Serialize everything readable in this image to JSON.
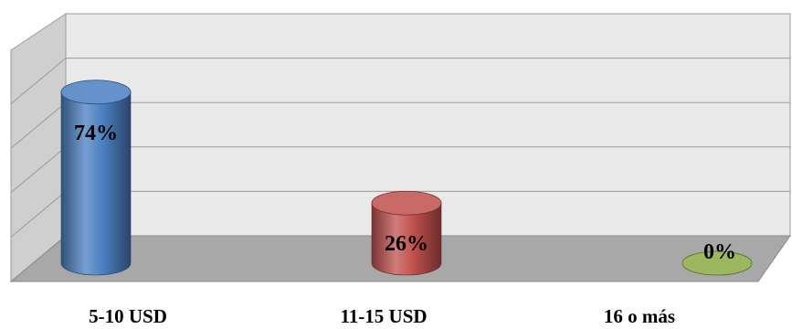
{
  "chart_data": {
    "type": "bar",
    "categories": [
      "5-10 USD",
      "11-15 USD",
      "16  o más"
    ],
    "values": [
      74,
      26,
      0
    ],
    "value_labels": [
      "74%",
      "26%",
      "0%"
    ],
    "ylim": [
      0,
      100
    ],
    "grid": true,
    "colors": [
      "#4a7fc1",
      "#c0504d",
      "#8aaa44"
    ]
  }
}
